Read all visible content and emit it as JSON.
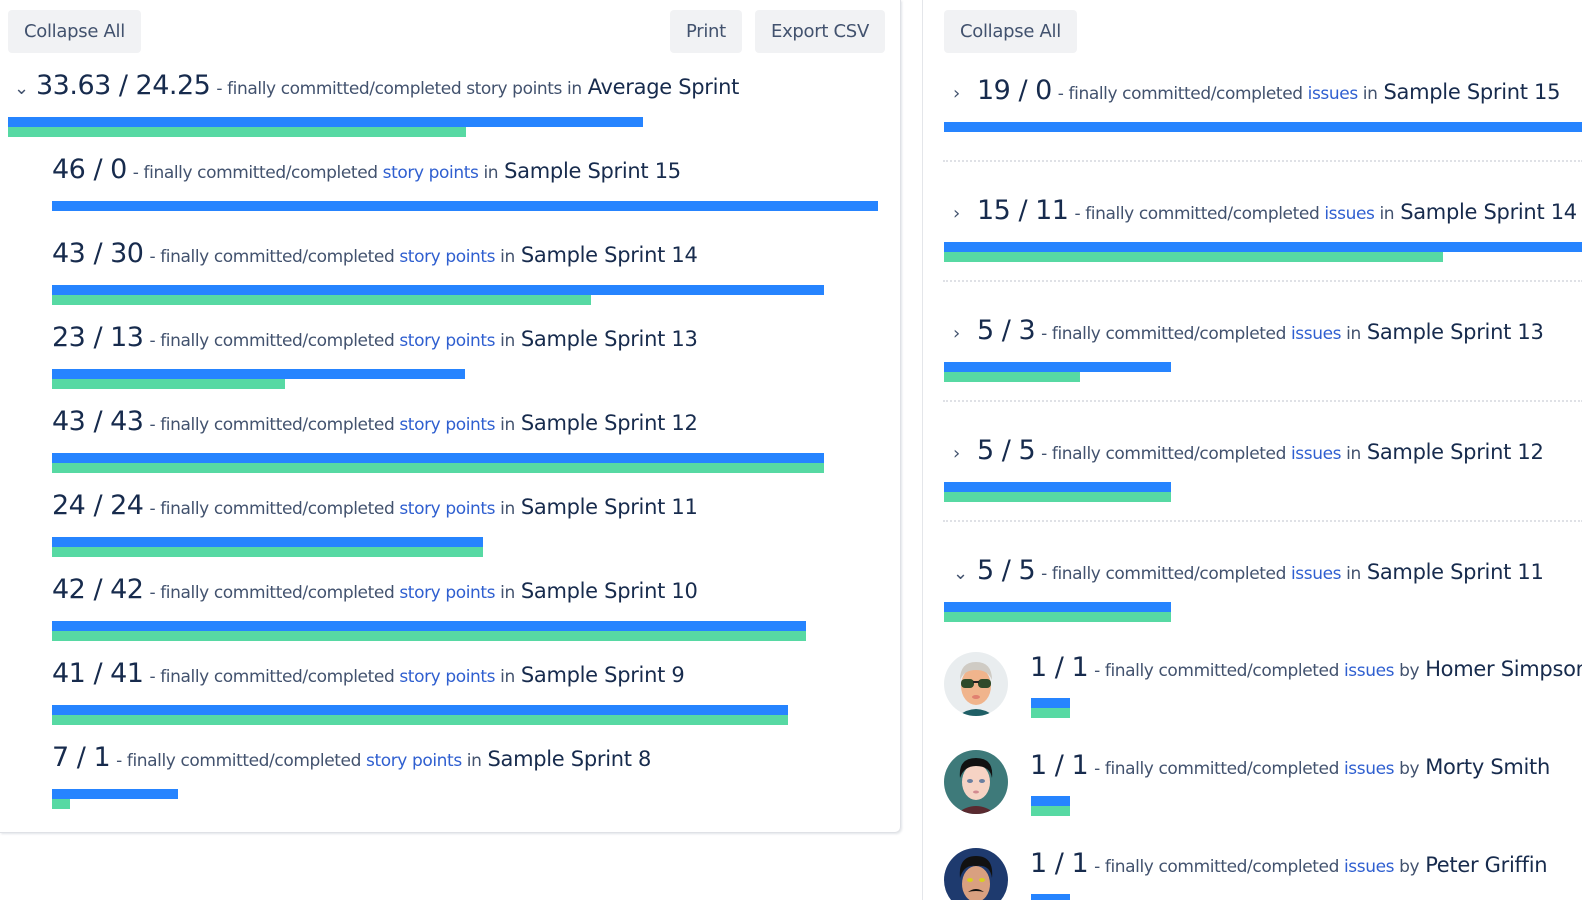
{
  "colors": {
    "committed": "#2684FF",
    "completed": "#57D9A3",
    "link": "#2F5FD0"
  },
  "left": {
    "buttons": {
      "collapse_all": "Collapse All",
      "print": "Print",
      "export_csv": "Export CSV"
    },
    "average": {
      "values": "33.63 / 24.25",
      "committed": 33.63,
      "completed": 24.25,
      "desc": "- finally committed/completed story points in",
      "name": "Average Sprint",
      "chevron": "chevron-down"
    },
    "link_text": "story points",
    "desc_prefix": "- finally committed/completed",
    "desc_suffix": "in",
    "scale_max": 46,
    "sprints": [
      {
        "values": "46 / 0",
        "committed": 46,
        "completed": 0,
        "name": "Sample Sprint 15"
      },
      {
        "values": "43 / 30",
        "committed": 43,
        "completed": 30,
        "name": "Sample Sprint 14"
      },
      {
        "values": "23 / 13",
        "committed": 23,
        "completed": 13,
        "name": "Sample Sprint 13"
      },
      {
        "values": "43 / 43",
        "committed": 43,
        "completed": 43,
        "name": "Sample Sprint 12"
      },
      {
        "values": "24 / 24",
        "committed": 24,
        "completed": 24,
        "name": "Sample Sprint 11"
      },
      {
        "values": "42 / 42",
        "committed": 42,
        "completed": 42,
        "name": "Sample Sprint 10"
      },
      {
        "values": "41 / 41",
        "committed": 41,
        "completed": 41,
        "name": "Sample Sprint 9"
      },
      {
        "values": "7 / 1",
        "committed": 7,
        "completed": 1,
        "name": "Sample Sprint 8"
      }
    ]
  },
  "right": {
    "buttons": {
      "collapse_all": "Collapse All"
    },
    "link_text": "issues",
    "desc_prefix": "- finally committed/completed",
    "desc_suffix_sprint": "in",
    "desc_suffix_user": "by",
    "scale_max": 19,
    "sprints": [
      {
        "values": "19 / 0",
        "committed": 19,
        "completed": 0,
        "name": "Sample Sprint 15",
        "chevron": "chevron-right"
      },
      {
        "values": "15 / 11",
        "committed": 15,
        "completed": 11,
        "name": "Sample Sprint 14",
        "chevron": "chevron-right"
      },
      {
        "values": "5 / 3",
        "committed": 5,
        "completed": 3,
        "name": "Sample Sprint 13",
        "chevron": "chevron-right"
      },
      {
        "values": "5 / 5",
        "committed": 5,
        "completed": 5,
        "name": "Sample Sprint 12",
        "chevron": "chevron-right"
      },
      {
        "values": "5 / 5",
        "committed": 5,
        "completed": 5,
        "name": "Sample Sprint 11",
        "chevron": "chevron-down"
      }
    ],
    "users": [
      {
        "values": "1 / 1",
        "committed": 1,
        "completed": 1,
        "name": "Homer Simpson",
        "avatar": "avatar-sunglasses-gray-hair"
      },
      {
        "values": "1 / 1",
        "committed": 1,
        "completed": 1,
        "name": "Morty Smith",
        "avatar": "avatar-dark-hair-teal-bg"
      },
      {
        "values": "1 / 1",
        "committed": 1,
        "completed": 1,
        "name": "Peter Griffin",
        "avatar": "avatar-mustache-navy-bg"
      }
    ]
  }
}
